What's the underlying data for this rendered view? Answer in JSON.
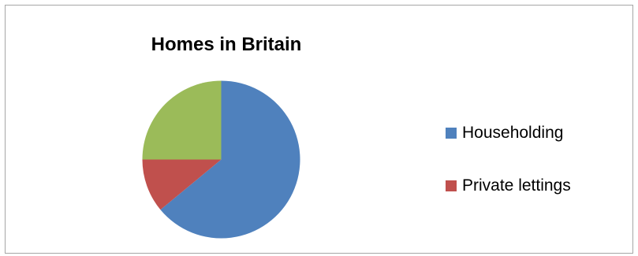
{
  "chart_data": {
    "type": "pie",
    "title": "Homes in Britain",
    "slices": [
      {
        "name": "Householding",
        "value": 64,
        "color": "#4f81bd"
      },
      {
        "name": "Private lettings",
        "value": 11,
        "color": "#c0504d"
      },
      {
        "name": "",
        "value": 25,
        "color": "#9bbb59"
      }
    ],
    "legend": {
      "placement": "right",
      "entries": [
        {
          "label": "Householding",
          "color": "#4f81bd"
        },
        {
          "label": "Private lettings",
          "color": "#c0504d"
        }
      ]
    }
  }
}
